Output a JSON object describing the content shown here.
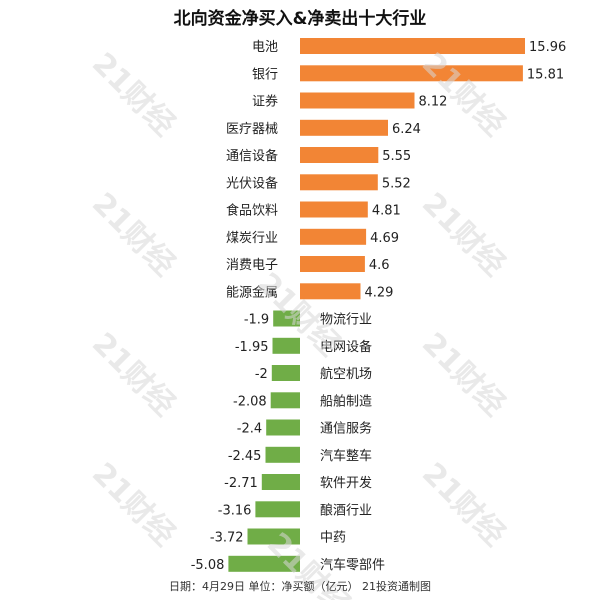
{
  "chart_data": {
    "type": "bar",
    "orientation": "horizontal",
    "title": "北向资金净买入&净卖出十大行业",
    "colors": {
      "positive": "#F28535",
      "negative": "#70AD47"
    },
    "categories": [
      "电池",
      "银行",
      "证券",
      "医疗器械",
      "通信设备",
      "光伏设备",
      "食品饮料",
      "煤炭行业",
      "消费电子",
      "能源金属",
      "物流行业",
      "电网设备",
      "航空机场",
      "船舶制造",
      "通信服务",
      "汽车整车",
      "软件开发",
      "酿酒行业",
      "中药",
      "汽车零部件"
    ],
    "values": [
      15.96,
      15.81,
      8.12,
      6.24,
      5.55,
      5.52,
      4.81,
      4.69,
      4.6,
      4.29,
      -1.9,
      -1.95,
      -2,
      -2.08,
      -2.4,
      -2.45,
      -2.71,
      -3.16,
      -3.72,
      -5.08
    ],
    "value_labels": [
      "15.96",
      "15.81",
      "8.12",
      "6.24",
      "5.55",
      "5.52",
      "4.81",
      "4.69",
      "4.6",
      "4.29",
      "-1.9",
      "-1.95",
      "-2",
      "-2.08",
      "-2.4",
      "-2.45",
      "-2.71",
      "-3.16",
      "-3.72",
      "-5.08"
    ],
    "grid": false,
    "legend": "none"
  },
  "footer": "日期：4月29日 单位：净买额（亿元） 21投资通制图",
  "watermark": "21财经"
}
